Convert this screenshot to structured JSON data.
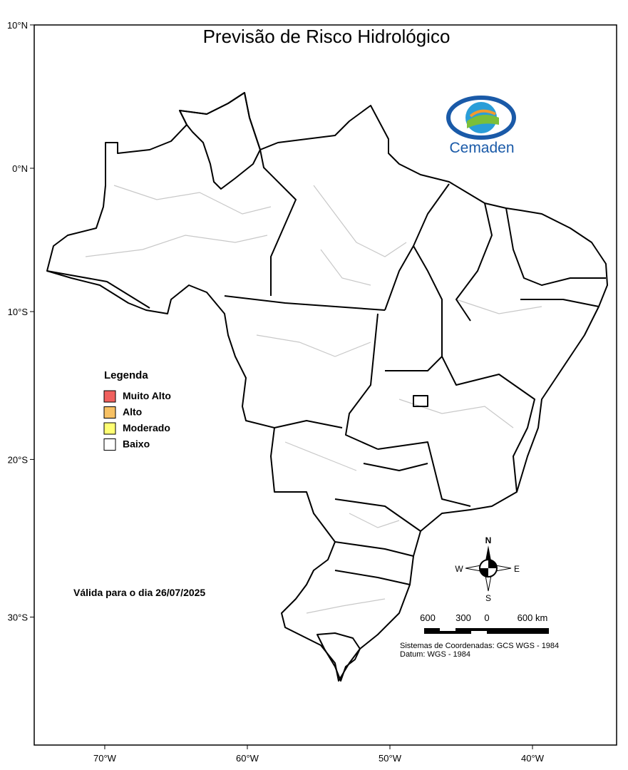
{
  "title": "Previsão de Risco Hidrológico",
  "logo_text": "Cemaden",
  "legend": {
    "title": "Legenda",
    "items": [
      {
        "label": "Muito Alto",
        "color": "#f0605e"
      },
      {
        "label": "Alto",
        "color": "#f7c164"
      },
      {
        "label": "Moderado",
        "color": "#ffff73"
      },
      {
        "label": "Baixo",
        "color": "#ffffff"
      }
    ]
  },
  "validity": "Válida para o dia 26/07/2025",
  "compass": {
    "n": "N",
    "e": "E",
    "s": "S",
    "w": "W"
  },
  "scale_bar": {
    "labels": [
      "600",
      "300",
      "0",
      "600 km"
    ]
  },
  "coordinate_system": "Sistemas de Coordenadas: GCS WGS - 1984",
  "datum": "Datum: WGS - 1984",
  "lat_ticks": [
    {
      "value": 10,
      "label": "10°N"
    },
    {
      "value": 0,
      "label": "0°N"
    },
    {
      "value": -10,
      "label": "10°S"
    },
    {
      "value": -20,
      "label": "20°S"
    },
    {
      "value": -30,
      "label": "30°S"
    }
  ],
  "lon_ticks": [
    {
      "value": -70,
      "label": "70°W"
    },
    {
      "value": -60,
      "label": "60°W"
    },
    {
      "value": -50,
      "label": "50°W"
    },
    {
      "value": -40,
      "label": "40°W"
    }
  ]
}
